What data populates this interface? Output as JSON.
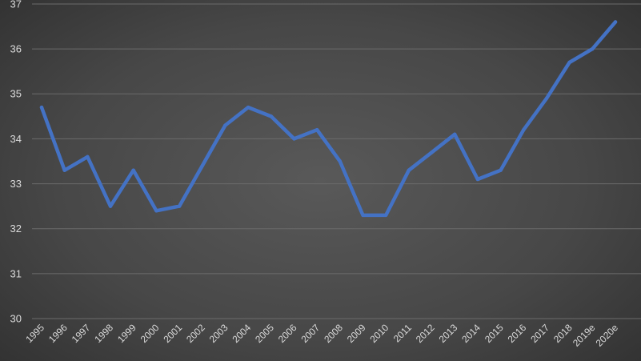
{
  "chart_data": {
    "type": "line",
    "title": "",
    "xlabel": "",
    "ylabel": "",
    "categories": [
      "1995",
      "1996",
      "1997",
      "1998",
      "1999",
      "2000",
      "2001",
      "2002",
      "2003",
      "2004",
      "2005",
      "2006",
      "2007",
      "2008",
      "2009",
      "2010",
      "2011",
      "2012",
      "2013",
      "2014",
      "2015",
      "2016",
      "2017",
      "2018",
      "2019e",
      "2020e"
    ],
    "series": [
      {
        "values": [
          34.7,
          33.3,
          33.6,
          32.5,
          33.3,
          32.4,
          32.5,
          33.4,
          34.3,
          34.7,
          34.5,
          34.0,
          34.2,
          33.5,
          32.3,
          32.3,
          33.3,
          33.7,
          34.1,
          33.1,
          33.3,
          34.2,
          34.9,
          35.7,
          36.0,
          36.6
        ],
        "color": "#4472c4"
      }
    ],
    "ylim": [
      30,
      37
    ],
    "yticks": [
      "30",
      "31",
      "32",
      "33",
      "34",
      "35",
      "36",
      "37"
    ],
    "grid": true,
    "legend": "none"
  }
}
